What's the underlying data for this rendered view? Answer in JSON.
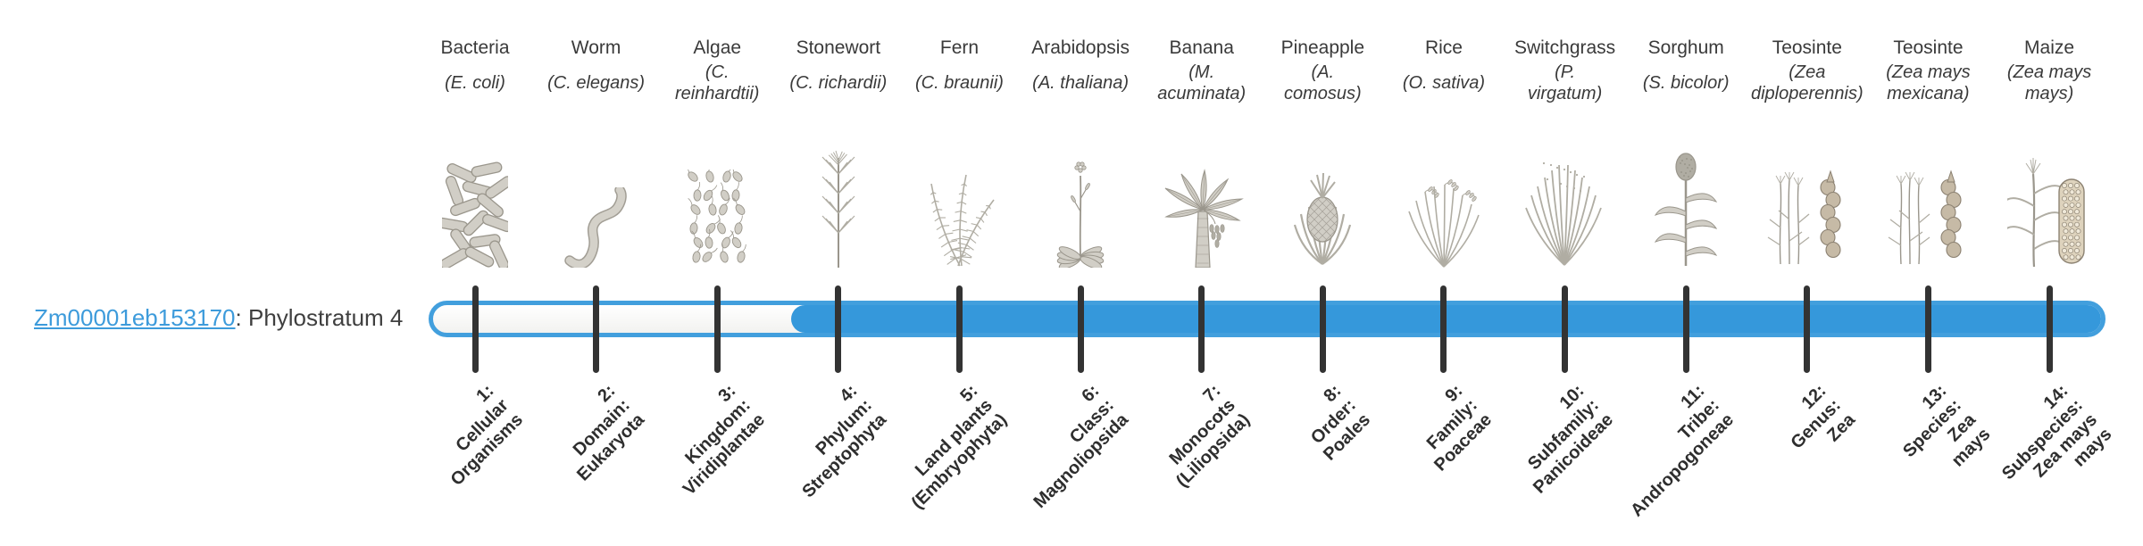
{
  "gene": {
    "id": "Zm00001eb153170",
    "suffix": ": Phylostratum 4",
    "link_color": "#3d9bdb"
  },
  "bar": {
    "fill_color": "#3598db",
    "empty_color": "#ffffff",
    "tick_color": "#333333"
  },
  "organisms": [
    {
      "name": "Bacteria",
      "sci": "(E. coli)",
      "icon": "bacteria"
    },
    {
      "name": "Worm",
      "sci": "(C. elegans)",
      "icon": "worm"
    },
    {
      "name": "Algae",
      "sci": "(C.\nreinhardtii)",
      "icon": "algae"
    },
    {
      "name": "Stonewort",
      "sci": "(C. richardii)",
      "icon": "stonewort"
    },
    {
      "name": "Fern",
      "sci": "(C. braunii)",
      "icon": "fern"
    },
    {
      "name": "Arabidopsis",
      "sci": "(A. thaliana)",
      "icon": "arabidopsis"
    },
    {
      "name": "Banana",
      "sci": "(M.\nacuminata)",
      "icon": "banana"
    },
    {
      "name": "Pineapple",
      "sci": "(A.\ncomosus)",
      "icon": "pineapple"
    },
    {
      "name": "Rice",
      "sci": "(O. sativa)",
      "icon": "rice"
    },
    {
      "name": "Switchgrass",
      "sci": "(P.\nvirgatum)",
      "icon": "switchgrass"
    },
    {
      "name": "Sorghum",
      "sci": "(S. bicolor)",
      "icon": "sorghum"
    },
    {
      "name": "Teosinte",
      "sci": "(Zea\ndiploperennis)",
      "icon": "teosinte"
    },
    {
      "name": "Teosinte",
      "sci": "(Zea mays\nmexicana)",
      "icon": "teosinte"
    },
    {
      "name": "Maize",
      "sci": "(Zea mays\nmays)",
      "icon": "maize"
    }
  ],
  "strata": [
    {
      "lines": "1:\nCellular\nOrganisms"
    },
    {
      "lines": "2:\nDomain:\nEukaryota"
    },
    {
      "lines": "3:\nKingdom:\nViridiplantae"
    },
    {
      "lines": "4:\nPhylum:\nStreptophyta"
    },
    {
      "lines": "5:\nLand plants\n(Embryophyta)"
    },
    {
      "lines": "6:\nClass:\nMagnoliopsida"
    },
    {
      "lines": "7:\nMonocots\n(Liliopsida)"
    },
    {
      "lines": "8:\nOrder:\nPoales"
    },
    {
      "lines": "9:\nFamily:\nPoaceae"
    },
    {
      "lines": "10:\nSubfamily:\nPanicoideae"
    },
    {
      "lines": "11:\nTribe:\nAndropogoneae"
    },
    {
      "lines": "12:\nGenus:\nZea"
    },
    {
      "lines": "13:\nSpecies:\nZea\nmays"
    },
    {
      "lines": "14:\nSubspecies:\nZea mays\nmays"
    }
  ],
  "chart_data": {
    "type": "bar",
    "title": "Zm00001eb153170: Phylostratum 4",
    "gene_id": "Zm00001eb153170",
    "gene_phylostratum": 4,
    "phylostrata": [
      "1: Cellular Organisms",
      "2: Domain: Eukaryota",
      "3: Kingdom: Viridiplantae",
      "4: Phylum: Streptophyta",
      "5: Land plants (Embryophyta)",
      "6: Class: Magnoliopsida",
      "7: Monocots (Liliopsida)",
      "8: Order: Poales",
      "9: Family: Poaceae",
      "10: Subfamily: Panicoideae",
      "11: Tribe: Andropogoneae",
      "12: Genus: Zea",
      "13: Species: Zea mays",
      "14: Subspecies: Zea mays mays"
    ],
    "organisms": [
      "Bacteria (E. coli)",
      "Worm (C. elegans)",
      "Algae (C. reinhardtii)",
      "Stonewort (C. richardii)",
      "Fern (C. braunii)",
      "Arabidopsis (A. thaliana)",
      "Banana (M. acuminata)",
      "Pineapple (A. comosus)",
      "Rice (O. sativa)",
      "Switchgrass (P. virgatum)",
      "Sorghum (S. bicolor)",
      "Teosinte (Zea diploperennis)",
      "Teosinte (Zea mays mexicana)",
      "Maize (Zea mays mays)"
    ],
    "filled_strata_range": [
      4,
      14
    ],
    "unfilled_strata_range": [
      1,
      3
    ],
    "bar_color": "#3598db",
    "legend_position": "none",
    "grid": false
  }
}
